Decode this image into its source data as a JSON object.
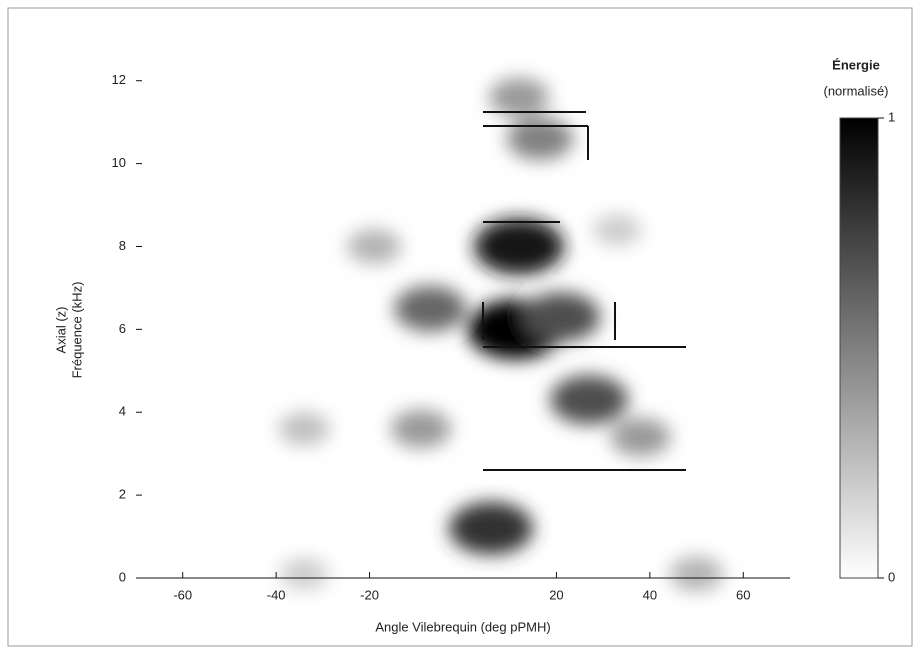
{
  "chart_data": {
    "type": "heatmap",
    "x_label": "Angle Vilebrequin (deg pPMH)",
    "y_label": [
      "Axial (z)",
      "Fréquence (kHz)"
    ],
    "colorbar_title": [
      "Énergie",
      "(normalisé)"
    ],
    "xlim": [
      -70,
      70
    ],
    "ylim": [
      0,
      12.5
    ],
    "xticks": [
      -60,
      -40,
      -20,
      20,
      40,
      60
    ],
    "yticks": [
      0,
      2,
      4,
      6,
      8,
      10,
      12
    ],
    "clim": [
      0,
      1
    ],
    "cticks": [
      0,
      1
    ],
    "x": [
      11.2,
      12,
      27,
      6,
      -7,
      12,
      16.5,
      21,
      -9,
      -34,
      -19,
      38,
      50,
      -34,
      33
    ],
    "y": [
      6.0,
      8.0,
      4.3,
      1.2,
      6.5,
      11.6,
      10.6,
      6.3,
      3.6,
      3.6,
      8.0,
      3.4,
      0.1,
      0.1,
      8.4
    ],
    "values": [
      1,
      0.9,
      0.7,
      0.8,
      0.6,
      0.4,
      0.5,
      0.7,
      0.4,
      0.25,
      0.3,
      0.4,
      0.3,
      0.2,
      0.2
    ]
  }
}
